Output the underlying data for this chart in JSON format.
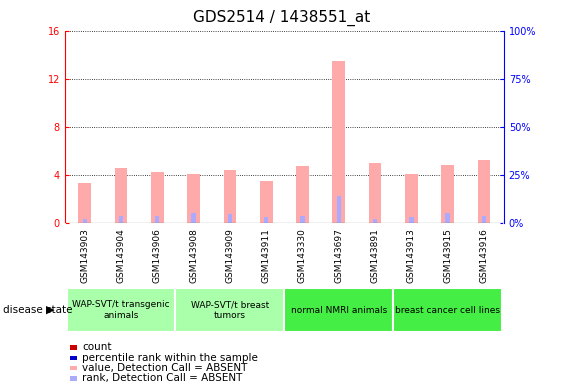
{
  "title": "GDS2514 / 1438551_at",
  "samples": [
    "GSM143903",
    "GSM143904",
    "GSM143906",
    "GSM143908",
    "GSM143909",
    "GSM143911",
    "GSM143330",
    "GSM143697",
    "GSM143891",
    "GSM143913",
    "GSM143915",
    "GSM143916"
  ],
  "absent_values": [
    3.3,
    4.6,
    4.2,
    4.1,
    4.4,
    3.5,
    4.7,
    13.5,
    5.0,
    4.1,
    4.8,
    5.2
  ],
  "absent_rank": [
    0.3,
    0.6,
    0.6,
    0.8,
    0.7,
    0.5,
    0.6,
    2.2,
    0.3,
    0.5,
    0.8,
    0.6
  ],
  "ylim_left": [
    0,
    16
  ],
  "ylim_right": [
    0,
    100
  ],
  "yticks_left": [
    0,
    4,
    8,
    12,
    16
  ],
  "yticks_right": [
    0,
    25,
    50,
    75,
    100
  ],
  "ytick_labels_right": [
    "0%",
    "25%",
    "50%",
    "75%",
    "100%"
  ],
  "groups": [
    {
      "label": "WAP-SVT/t transgenic\nanimals",
      "start": 0,
      "end": 3,
      "color": "#aaffaa"
    },
    {
      "label": "WAP-SVT/t breast\ntumors",
      "start": 3,
      "end": 6,
      "color": "#aaffaa"
    },
    {
      "label": "normal NMRI animals",
      "start": 6,
      "end": 9,
      "color": "#44ee44"
    },
    {
      "label": "breast cancer cell lines",
      "start": 9,
      "end": 12,
      "color": "#44ee44"
    }
  ],
  "absent_bar_color": "#ffaaaa",
  "absent_rank_color": "#aaaaff",
  "bg_color": "#ffffff",
  "tick_bg_color": "#cccccc",
  "legend_items": [
    {
      "color": "#cc0000",
      "label": "count"
    },
    {
      "color": "#0000cc",
      "label": "percentile rank within the sample"
    },
    {
      "color": "#ffaaaa",
      "label": "value, Detection Call = ABSENT"
    },
    {
      "color": "#aaaaff",
      "label": "rank, Detection Call = ABSENT"
    }
  ],
  "group_row_label": "disease state",
  "title_fontsize": 11,
  "tick_fontsize": 6.5,
  "legend_fontsize": 7.5
}
